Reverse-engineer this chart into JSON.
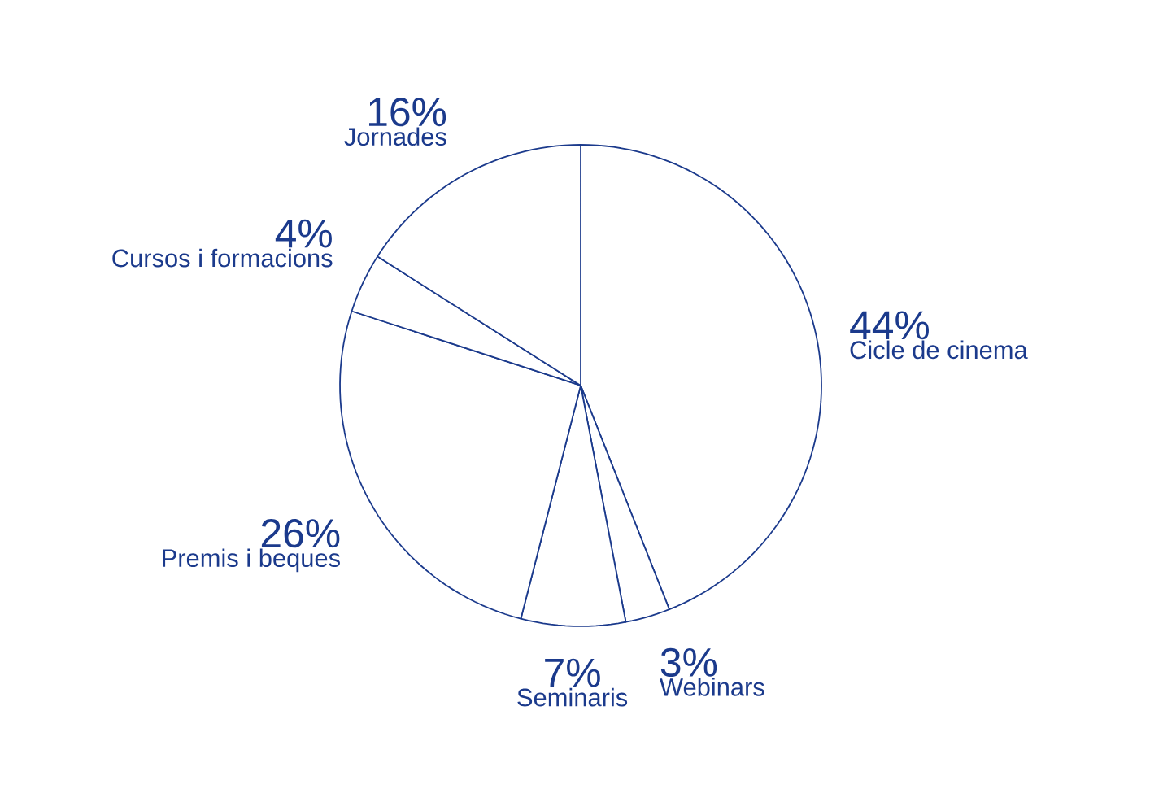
{
  "chart_data": {
    "type": "pie",
    "categories": [
      "Cicle de cinema",
      "Webinars",
      "Seminaris",
      "Premis i beques",
      "Cursos i formacions",
      "Jornades"
    ],
    "values": [
      44,
      3,
      7,
      26,
      4,
      16
    ],
    "value_labels": [
      "44%",
      "3%",
      "7%",
      "26%",
      "4%",
      "16%"
    ],
    "colors": [
      "#ffffff",
      "#ffffff",
      "#ffffff",
      "#ffffff",
      "#ffffff",
      "#ffffff"
    ]
  }
}
